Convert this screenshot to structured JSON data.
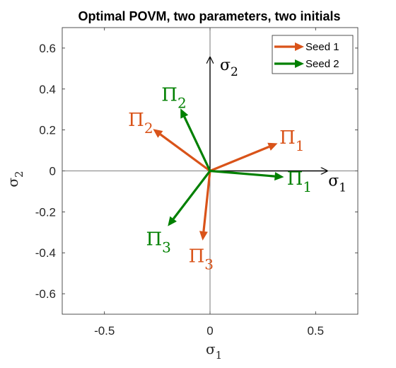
{
  "chart_data": {
    "type": "line",
    "title": "Optimal POVM, two parameters, two initials",
    "xlabel": {
      "base": "σ",
      "sub": "1"
    },
    "ylabel": {
      "base": "σ",
      "sub": "2"
    },
    "xlim": [
      -0.7,
      0.7
    ],
    "ylim": [
      -0.7,
      0.7
    ],
    "xticks": [
      -0.5,
      0,
      0.5
    ],
    "xtick_labels": [
      "-0.5",
      "0",
      "0.5"
    ],
    "yticks": [
      -0.6,
      -0.4,
      -0.2,
      0,
      0.2,
      0.4,
      0.6
    ],
    "ytick_labels": [
      "-0.6",
      "-0.4",
      "-0.2",
      "0",
      "0.2",
      "0.4",
      "0.6"
    ],
    "grid": false,
    "legend_position": "top-right",
    "axes_labels": {
      "x": {
        "base": "σ",
        "sub": "1"
      },
      "y": {
        "base": "σ",
        "sub": "2"
      }
    },
    "series": [
      {
        "name": "Seed 1",
        "color": "#d95319",
        "vectors": [
          {
            "label_base": "Π",
            "label_sub": "1",
            "x": 0.32,
            "y": 0.135
          },
          {
            "label_base": "Π",
            "label_sub": "2",
            "x": -0.27,
            "y": 0.205
          },
          {
            "label_base": "Π",
            "label_sub": "3",
            "x": -0.035,
            "y": -0.34
          }
        ]
      },
      {
        "name": "Seed 2",
        "color": "#008000",
        "vectors": [
          {
            "label_base": "Π",
            "label_sub": "1",
            "x": 0.35,
            "y": -0.03
          },
          {
            "label_base": "Π",
            "label_sub": "2",
            "x": -0.14,
            "y": 0.305
          },
          {
            "label_base": "Π",
            "label_sub": "3",
            "x": -0.2,
            "y": -0.27
          }
        ]
      }
    ]
  }
}
